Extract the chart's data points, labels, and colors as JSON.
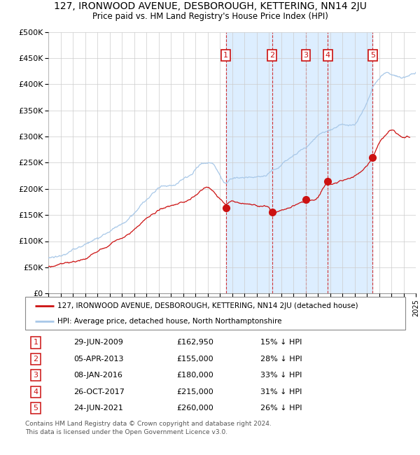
{
  "title": "127, IRONWOOD AVENUE, DESBOROUGH, KETTERING, NN14 2JU",
  "subtitle": "Price paid vs. HM Land Registry's House Price Index (HPI)",
  "ylim": [
    0,
    500000
  ],
  "yticks": [
    0,
    50000,
    100000,
    150000,
    200000,
    250000,
    300000,
    350000,
    400000,
    450000,
    500000
  ],
  "ytick_labels": [
    "£0",
    "£50K",
    "£100K",
    "£150K",
    "£200K",
    "£250K",
    "£300K",
    "£350K",
    "£400K",
    "£450K",
    "£500K"
  ],
  "legend_line1": "127, IRONWOOD AVENUE, DESBOROUGH, KETTERING, NN14 2JU (detached house)",
  "legend_line2": "HPI: Average price, detached house, North Northamptonshire",
  "footer_line1": "Contains HM Land Registry data © Crown copyright and database right 2024.",
  "footer_line2": "This data is licensed under the Open Government Licence v3.0.",
  "sale_prices": [
    162950,
    155000,
    180000,
    215000,
    260000
  ],
  "sale_labels": [
    "1",
    "2",
    "3",
    "4",
    "5"
  ],
  "sale_info": [
    [
      "1",
      "29-JUN-2009",
      "£162,950",
      "15% ↓ HPI"
    ],
    [
      "2",
      "05-APR-2013",
      "£155,000",
      "28% ↓ HPI"
    ],
    [
      "3",
      "08-JAN-2016",
      "£180,000",
      "33% ↓ HPI"
    ],
    [
      "4",
      "26-OCT-2017",
      "£215,000",
      "31% ↓ HPI"
    ],
    [
      "5",
      "24-JUN-2021",
      "£260,000",
      "26% ↓ HPI"
    ]
  ],
  "hpi_color": "#a8c8e8",
  "price_color": "#cc1111",
  "shade_color": "#ddeeff",
  "background_color": "#ffffff",
  "grid_color": "#cccccc",
  "sale_years": [
    2009.494,
    2013.258,
    2016.019,
    2017.819,
    2021.479
  ]
}
